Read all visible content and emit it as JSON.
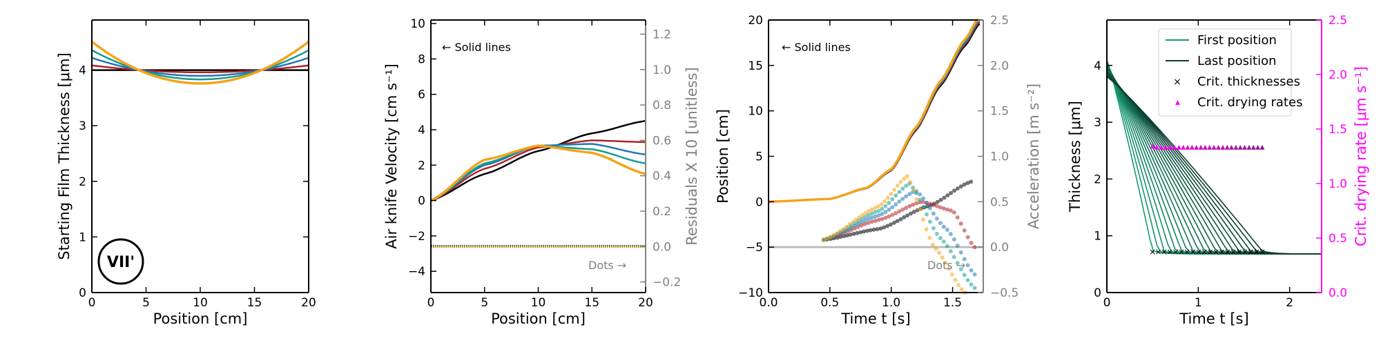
{
  "colors": {
    "black": "#000000",
    "red": "#b22222",
    "blue": "#1f77b4",
    "teal": "#169c8e",
    "lightgreen": "#5bbf94",
    "orange": "#f5a31a",
    "gray": "#808080",
    "magenta": "#ff00ff",
    "darkmagenta": "#8b1a8b",
    "dark_green": "#0d3b2e",
    "first_green": "#149a72"
  },
  "chart_data": [
    {
      "type": "line",
      "xlabel": "Position [cm]",
      "ylabel": "Starting Film Thickness [μm]",
      "xlim": [
        0,
        20
      ],
      "ylim": [
        0,
        4.9
      ],
      "xticks": [
        "0",
        "5",
        "10",
        "15",
        "20"
      ],
      "yticks": [
        "0",
        "1",
        "2",
        "3",
        "4"
      ],
      "badge": "VII'",
      "series": [
        {
          "color": "black",
          "amplitude": 0.0
        },
        {
          "color": "red",
          "amplitude": 0.1
        },
        {
          "color": "blue",
          "amplitude": 0.26
        },
        {
          "color": "teal",
          "amplitude": 0.42
        },
        {
          "color": "orange",
          "amplitude": 0.6
        }
      ]
    },
    {
      "type": "line",
      "xlabel": "Position [cm]",
      "ylabel": "Air knife Velocity [cm s⁻¹]",
      "y2label": "Residuals X 10 [unitless]",
      "xlim": [
        0,
        20
      ],
      "ylim": [
        -5.2,
        10.2
      ],
      "y2lim": [
        -0.26,
        1.28
      ],
      "xticks": [
        "0",
        "5",
        "10",
        "15",
        "20"
      ],
      "yticks": [
        "−4",
        "−2",
        "0",
        "2",
        "4",
        "6",
        "8",
        "10"
      ],
      "y2ticks": [
        "−0.2",
        "0.0",
        "0.2",
        "0.4",
        "0.6",
        "0.8",
        "1.0",
        "1.2"
      ],
      "annotation_left": "← Solid lines",
      "annotation_right": "Dots →",
      "series": [
        {
          "color": "black",
          "x": [
            0,
            5,
            10,
            15,
            20
          ],
          "y": [
            0,
            1.5,
            2.8,
            3.8,
            4.5
          ]
        },
        {
          "color": "red",
          "x": [
            0,
            5,
            10,
            15,
            20
          ],
          "y": [
            0,
            1.8,
            3.0,
            3.4,
            3.3
          ]
        },
        {
          "color": "blue",
          "x": [
            0,
            5,
            10,
            15,
            20
          ],
          "y": [
            0,
            2.0,
            3.1,
            3.2,
            2.6
          ]
        },
        {
          "color": "teal",
          "x": [
            0,
            5,
            10,
            15,
            20
          ],
          "y": [
            0,
            2.1,
            3.1,
            2.9,
            2.1
          ]
        },
        {
          "color": "orange",
          "x": [
            0,
            5,
            10,
            15,
            20
          ],
          "y": [
            0,
            2.3,
            3.1,
            2.7,
            1.5
          ]
        }
      ],
      "residual_level": 0.0
    },
    {
      "type": "line",
      "xlabel": "Time t [s]",
      "ylabel": "Position [cm]",
      "y2label": "Acceleration [m s⁻²]",
      "xlim": [
        0,
        1.75
      ],
      "ylim": [
        -10,
        20
      ],
      "y2lim": [
        -0.5,
        2.5
      ],
      "xticks": [
        "0.0",
        "0.5",
        "1.0",
        "1.5"
      ],
      "yticks": [
        "−10",
        "−5",
        "0",
        "5",
        "10",
        "15",
        "20"
      ],
      "y2ticks": [
        "−0.5",
        "0.0",
        "0.5",
        "1.0",
        "1.5",
        "2.0",
        "2.5"
      ],
      "annotation_left": "← Solid lines",
      "annotation_right": "Dots →",
      "positions": {
        "t": [
          0,
          0.5,
          0.8,
          1.0,
          1.2,
          1.4,
          1.6,
          1.72
        ],
        "y": [
          0,
          0.3,
          1.5,
          3.5,
          8,
          13,
          17.5,
          20
        ]
      },
      "accel_series": [
        {
          "color": "black",
          "t": [
            0.45,
            0.9,
            1.3,
            1.65
          ],
          "a": [
            0.08,
            0.2,
            0.45,
            0.72
          ]
        },
        {
          "color": "red",
          "t": [
            0.45,
            0.9,
            1.25,
            1.5,
            1.68
          ],
          "a": [
            0.08,
            0.3,
            0.5,
            0.4,
            0.0
          ]
        },
        {
          "color": "blue",
          "t": [
            0.45,
            0.9,
            1.2,
            1.45,
            1.68
          ],
          "a": [
            0.08,
            0.35,
            0.62,
            0.2,
            -0.3
          ]
        },
        {
          "color": "teal",
          "t": [
            0.45,
            0.9,
            1.15,
            1.4,
            1.68
          ],
          "a": [
            0.08,
            0.4,
            0.7,
            0.1,
            -0.45
          ]
        },
        {
          "color": "orange",
          "t": [
            0.45,
            0.9,
            1.13,
            1.35,
            1.6
          ],
          "a": [
            0.08,
            0.45,
            0.78,
            0.0,
            -0.5
          ]
        }
      ]
    },
    {
      "type": "line",
      "xlabel": "Time t [s]",
      "ylabel": "Thickness [μm]",
      "y2label": "Crit. drying rate [μm s⁻¹]",
      "xlim": [
        0,
        2.35
      ],
      "ylim": [
        0,
        4.8
      ],
      "y2lim": [
        0,
        2.5
      ],
      "xticks": [
        "0",
        "1",
        "2"
      ],
      "yticks": [
        "0",
        "1",
        "2",
        "3",
        "4"
      ],
      "y2ticks": [
        "0.0",
        "0.5",
        "1.0",
        "1.5",
        "2.0",
        "2.5"
      ],
      "legend": [
        "First position",
        "Last position",
        "Crit. thicknesses",
        "Crit. drying rates"
      ],
      "legend_position": "top-right",
      "curves": {
        "count": 20,
        "t_start_first": 0.5,
        "t_start_last": 1.7,
        "start_thickness": 4.1,
        "end_thickness": 0.68
      },
      "crit_rates": {
        "t_from": 0.5,
        "t_to": 1.7,
        "count": 26,
        "rate": 1.33
      }
    }
  ]
}
